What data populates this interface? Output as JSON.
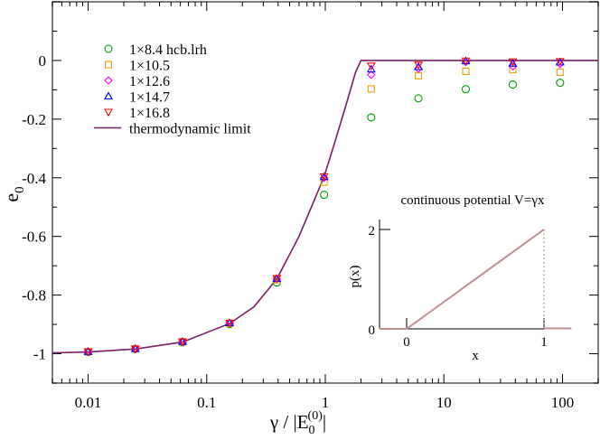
{
  "chart_data": {
    "type": "scatter",
    "xscale": "log",
    "xlabel": "γ / |E0(0)|",
    "xlabel_parts": {
      "main": "γ / |E",
      "sub": "0",
      "sup": "(0)",
      "tail": "|"
    },
    "ylabel": "e0",
    "ylabel_parts": {
      "main": "e",
      "sub": "0"
    },
    "xlim": [
      0.005,
      200
    ],
    "ylim": [
      -1.1,
      0.2
    ],
    "xticks": [
      {
        "value": 0.01,
        "label": "0.01"
      },
      {
        "value": 0.1,
        "label": "0.1"
      },
      {
        "value": 1,
        "label": "1"
      },
      {
        "value": 10,
        "label": "10"
      },
      {
        "value": 100,
        "label": "100"
      }
    ],
    "yticks": [
      {
        "value": 0,
        "label": "0"
      },
      {
        "value": -0.2,
        "label": "-0.2"
      },
      {
        "value": -0.4,
        "label": "-0.4"
      },
      {
        "value": -0.6,
        "label": "-0.6"
      },
      {
        "value": -0.8,
        "label": "-0.8"
      },
      {
        "value": -1,
        "label": "-1"
      }
    ],
    "grid": false,
    "legend_position": "upper left",
    "x": [
      0.01,
      0.025,
      0.0625,
      0.156,
      0.39,
      0.977,
      2.44,
      6.1,
      15.3,
      38.1,
      95.4
    ],
    "series": [
      {
        "name": "1×8.4  hcb.lrh",
        "marker": "circle",
        "color": "#00a000",
        "values": [
          -0.994,
          -0.984,
          -0.961,
          -0.899,
          -0.757,
          -0.458,
          -0.194,
          -0.129,
          -0.098,
          -0.082,
          -0.076
        ]
      },
      {
        "name": "1×10.5",
        "marker": "square",
        "color": "#f0a000",
        "values": [
          -0.993,
          -0.983,
          -0.959,
          -0.896,
          -0.748,
          -0.415,
          -0.097,
          -0.052,
          -0.037,
          -0.031,
          -0.04
        ]
      },
      {
        "name": "1×12.6",
        "marker": "diamond",
        "color": "#ff00ff",
        "values": [
          -0.993,
          -0.983,
          -0.959,
          -0.895,
          -0.745,
          -0.4,
          -0.049,
          -0.028,
          -0.005,
          -0.02,
          -0.012
        ]
      },
      {
        "name": "1×14.7",
        "marker": "triangle-up",
        "color": "#0000ff",
        "values": [
          -0.993,
          -0.983,
          -0.959,
          -0.895,
          -0.744,
          -0.397,
          -0.03,
          -0.022,
          -0.002,
          -0.01,
          -0.006
        ]
      },
      {
        "name": "1×16.8",
        "marker": "triangle-down",
        "color": "#ff0000",
        "values": [
          -0.993,
          -0.983,
          -0.959,
          -0.895,
          -0.743,
          -0.396,
          -0.018,
          -0.015,
          -0.001,
          -0.004,
          -0.003
        ]
      }
    ],
    "line_series": {
      "name": "thermodynamic limit",
      "color": "#7a1e62",
      "description": "e0 = -(1 - γ/2)^(3/2)-like curve reaching 0 at γ = 2, then 0 for γ ≥ 2",
      "x": [
        0.005,
        0.01,
        0.025,
        0.0625,
        0.156,
        0.25,
        0.39,
        0.6,
        0.8,
        0.977,
        1.2,
        1.5,
        1.8,
        2.0,
        200
      ],
      "values": [
        -0.997,
        -0.994,
        -0.984,
        -0.96,
        -0.897,
        -0.84,
        -0.745,
        -0.6,
        -0.48,
        -0.396,
        -0.28,
        -0.15,
        -0.04,
        0.0,
        0.0
      ]
    },
    "inset": {
      "title": "continuous potential V=γx",
      "xlabel": "x",
      "ylabel": "p(x)",
      "xlim": [
        -0.2,
        1.2
      ],
      "ylim": [
        0,
        2.2
      ],
      "xticks": [
        {
          "value": 0,
          "label": "0"
        },
        {
          "value": 1,
          "label": "1"
        }
      ],
      "yticks": [
        {
          "value": 0,
          "label": "0"
        },
        {
          "value": 2,
          "label": "2"
        }
      ],
      "color": "#c09090",
      "line": {
        "x": [
          -0.2,
          0,
          1,
          1.2
        ],
        "y": [
          0,
          0,
          2,
          0
        ]
      },
      "dotted_drop_x": 1
    }
  }
}
